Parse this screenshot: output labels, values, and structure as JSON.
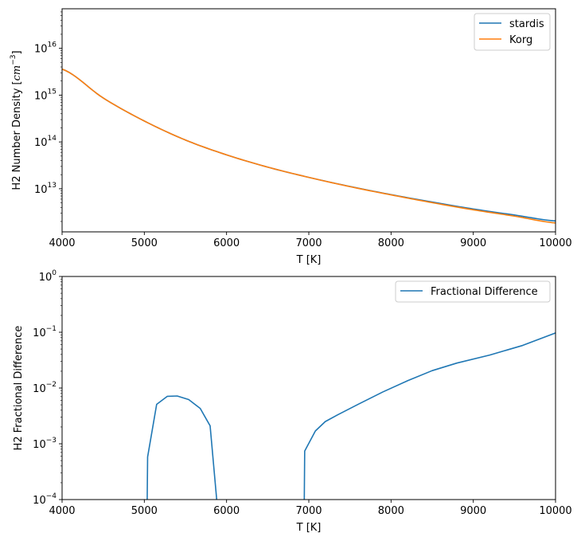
{
  "colors": {
    "stardis": "#1f77b4",
    "korg": "#ff7f0e",
    "frac": "#1f77b4"
  },
  "chart_data": [
    {
      "type": "line",
      "ylabel_main": "H2 Number Density [",
      "ylabel_unit_base": "cm",
      "ylabel_unit_exp": "−3",
      "ylabel_close": "]",
      "xlabel": "T [K]",
      "xlim": [
        4000,
        10000
      ],
      "ylim": [
        1200000000000.0,
        7e+16
      ],
      "yscale": "log",
      "legend_position": "top-right",
      "x_ticks": [
        4000,
        5000,
        6000,
        7000,
        8000,
        9000,
        10000
      ],
      "x_tick_labels": [
        "4000",
        "5000",
        "6000",
        "7000",
        "8000",
        "9000",
        "10000"
      ],
      "y_ticks": [
        {
          "value": 10000000000000.0,
          "base": "10",
          "exp": "13"
        },
        {
          "value": 100000000000000.0,
          "base": "10",
          "exp": "14"
        },
        {
          "value": 1000000000000000.0,
          "base": "10",
          "exp": "15"
        },
        {
          "value": 1e+16,
          "base": "10",
          "exp": "16"
        }
      ],
      "series": [
        {
          "name": "stardis",
          "x": [
            4000,
            4500,
            5000,
            5500,
            6000,
            6500,
            7000,
            7500,
            8000,
            8500,
            9000,
            9500,
            10000
          ],
          "y": [
            3600000000000000.0,
            870000000000000.0,
            280000000000000.0,
            110000000000000.0,
            53000000000000.0,
            29000000000000.0,
            17500000000000.0,
            11200000000000.0,
            7500000000000.0,
            5200000000000.0,
            3700000000000.0,
            2750000000000.0,
            2050000000000.0
          ]
        },
        {
          "name": "Korg",
          "x": [
            4000,
            4500,
            5000,
            5500,
            6000,
            6500,
            7000,
            7500,
            8000,
            8500,
            9000,
            9500,
            10000
          ],
          "y": [
            3600000000000000.0,
            870000000000000.0,
            280000000000000.0,
            110000000000000.0,
            53000000000000.0,
            29000000000000.0,
            17500000000000.0,
            11100000000000.0,
            7400000000000.0,
            5050000000000.0,
            3550000000000.0,
            2600000000000.0,
            1860000000000.0
          ]
        }
      ]
    },
    {
      "type": "line",
      "ylabel": "H2 Fractional Difference",
      "xlabel": "T [K]",
      "xlim": [
        4000,
        10000
      ],
      "ylim": [
        0.0001,
        1
      ],
      "yscale": "log",
      "legend_position": "top-right",
      "x_ticks": [
        4000,
        5000,
        6000,
        7000,
        8000,
        9000,
        10000
      ],
      "x_tick_labels": [
        "4000",
        "5000",
        "6000",
        "7000",
        "8000",
        "9000",
        "10000"
      ],
      "y_ticks": [
        {
          "value": 0.0001,
          "base": "10",
          "exp": "−4"
        },
        {
          "value": 0.001,
          "base": "10",
          "exp": "−3"
        },
        {
          "value": 0.01,
          "base": "10",
          "exp": "−2"
        },
        {
          "value": 0.1,
          "base": "10",
          "exp": "−1"
        },
        {
          "value": 1,
          "base": "10",
          "exp": "0"
        }
      ],
      "series": [
        {
          "name": "Fractional Difference",
          "segments": [
            {
              "x": [
                5035,
                5040,
                5150,
                5280,
                5400,
                5540,
                5680,
                5800,
                5880
              ],
              "y": [
                0.0001,
                0.00058,
                0.0051,
                0.0071,
                0.0072,
                0.0062,
                0.0043,
                0.0021,
                0.0001
              ]
            },
            {
              "x": [
                6945,
                6950,
                7080,
                7200,
                7350,
                7600,
                7900,
                8200,
                8500,
                8800,
                9200,
                9600,
                10000
              ],
              "y": [
                0.0001,
                0.00074,
                0.0017,
                0.0025,
                0.0033,
                0.0051,
                0.0085,
                0.0135,
                0.0205,
                0.028,
                0.039,
                0.058,
                0.097
              ]
            }
          ]
        }
      ]
    }
  ]
}
